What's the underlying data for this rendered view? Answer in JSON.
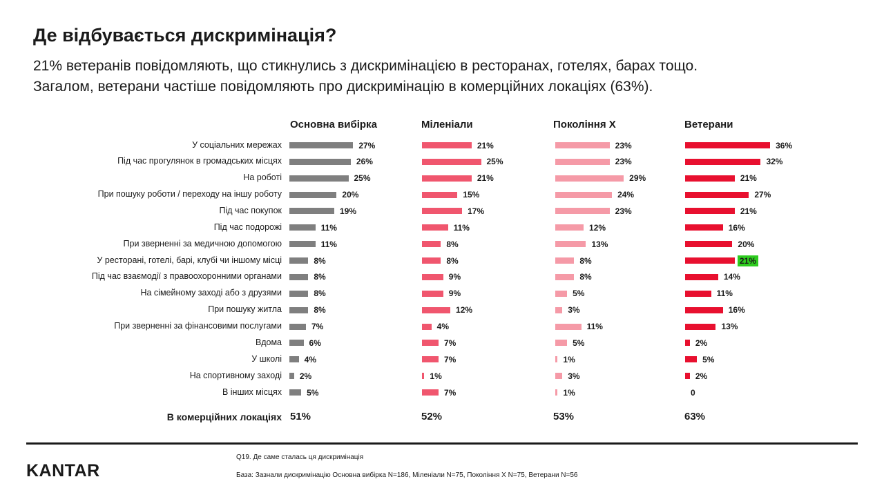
{
  "title": "Де відбувається дискримінація?",
  "subtitle_line1": "21% ветеранів повідомляють, що стикнулись з дискримінацією в ресторанах, готелях, барах тощо.",
  "subtitle_line2": "Загалом, ветерани частіше повідомляють про дискримінацію в комерційних локаціях (63%).",
  "commercial_label": "В комерційних локаціях",
  "question_note": "Q19. Де саме сталась ця дискримінація",
  "base_note": "База: Зазнали дискримінацію Основна вибірка N=186, Міленіали N=75, Покоління X N=75, Ветерани N=56",
  "logo": "KANTAR",
  "chart_data": {
    "type": "bar",
    "orientation": "horizontal",
    "categories": [
      "У соціальних мережах",
      "Під час прогулянок в громадських місцях",
      "На роботі",
      "При пошуку роботи / переходу на іншу роботу",
      "Під час покупок",
      "Під час подорожі",
      "При зверненні за медичною допомогою",
      "У ресторані, готелі, барі, клубі чи іншому місці",
      "Під час взаємодії з правоохоронними органами",
      "На сімейному заході або з друзями",
      "При пошуку житла",
      "При зверненні за фінансовими послугами",
      "Вдома",
      "У школі",
      "На спортивному заході",
      "В інших місцях"
    ],
    "series": [
      {
        "name": "Основна вибірка",
        "color": "#7f7f7f",
        "values": [
          27,
          26,
          25,
          20,
          19,
          11,
          11,
          8,
          8,
          8,
          8,
          7,
          6,
          4,
          2,
          5
        ],
        "labels": [
          "27%",
          "26%",
          "25%",
          "20%",
          "19%",
          "11%",
          "11%",
          "8%",
          "8%",
          "8%",
          "8%",
          "7%",
          "6%",
          "4%",
          "2%",
          "5%"
        ],
        "commercial": "51%"
      },
      {
        "name": "Міленіали",
        "color": "#f0566e",
        "values": [
          21,
          25,
          21,
          15,
          17,
          11,
          8,
          8,
          9,
          9,
          12,
          4,
          7,
          7,
          1,
          7
        ],
        "labels": [
          "21%",
          "25%",
          "21%",
          "15%",
          "17%",
          "11%",
          "8%",
          "8%",
          "9%",
          "9%",
          "12%",
          "4%",
          "7%",
          "7%",
          "1%",
          "7%"
        ],
        "commercial": "52%"
      },
      {
        "name": "Покоління Х",
        "color": "#f59aa7",
        "values": [
          23,
          23,
          29,
          24,
          23,
          12,
          13,
          8,
          8,
          5,
          3,
          11,
          5,
          1,
          3,
          1
        ],
        "labels": [
          "23%",
          "23%",
          "29%",
          "24%",
          "23%",
          "12%",
          "13%",
          "8%",
          "8%",
          "5%",
          "3%",
          "11%",
          "5%",
          "1%",
          "3%",
          "1%"
        ],
        "commercial": "53%"
      },
      {
        "name": "Ветерани",
        "color": "#e8102f",
        "values": [
          36,
          32,
          21,
          27,
          21,
          16,
          20,
          21,
          14,
          11,
          16,
          13,
          2,
          5,
          2,
          0
        ],
        "labels": [
          "36%",
          "32%",
          "21%",
          "27%",
          "21%",
          "16%",
          "20%",
          "21%",
          "14%",
          "11%",
          "16%",
          "13%",
          "2%",
          "5%",
          "2%",
          "0"
        ],
        "commercial": "63%",
        "highlight_index": 7,
        "highlight_color": "#2ecc1f"
      }
    ]
  }
}
